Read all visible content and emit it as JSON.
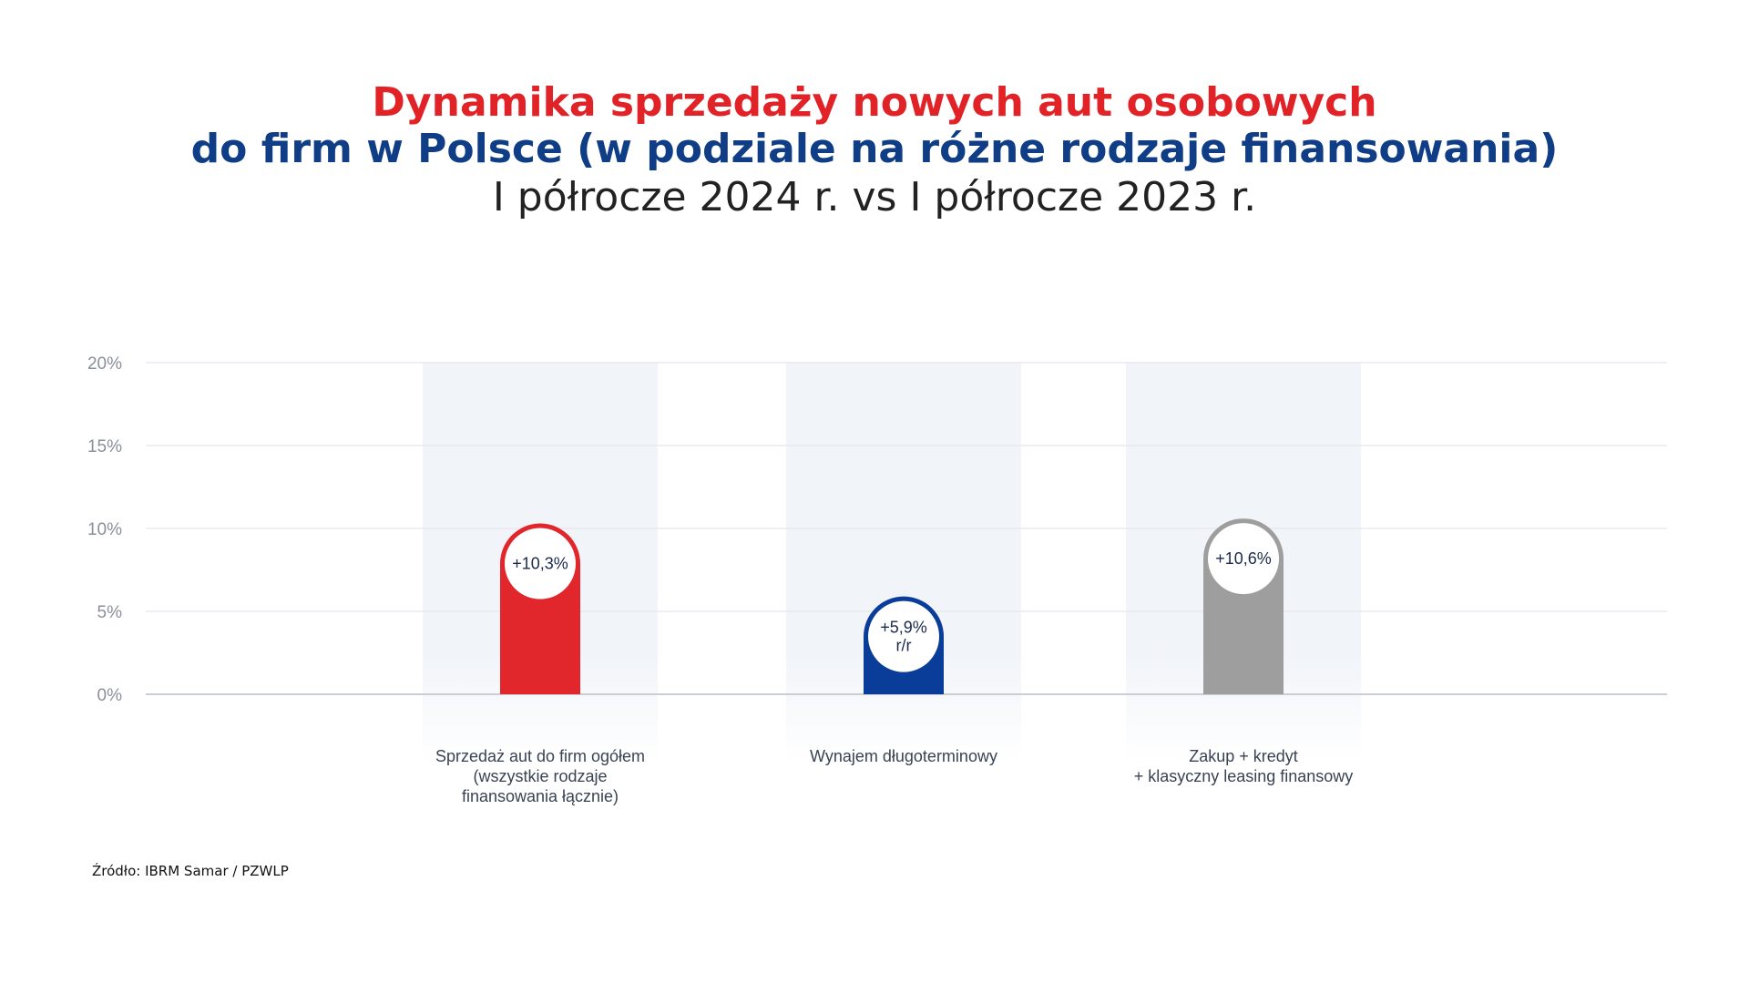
{
  "title": {
    "line1": "Dynamika sprzedaży nowych aut osobowych",
    "line2": "do firm w Polsce (w podziale na różne rodzaje finansowania)",
    "line3": "I półrocze 2024 r. vs I półrocze 2023 r."
  },
  "source": "Źródło:  IBRM Samar / PZWLP",
  "chart_data": {
    "type": "bar",
    "categories": [
      "Sprzedaż aut do firm ogółem\n(wszystkie rodzaje\nfinansowania łącznie)",
      "Wynajem długoterminowy",
      "Zakup + kredyt\n+ klasyczny leasing finansowy"
    ],
    "values": [
      10.3,
      5.9,
      10.6
    ],
    "data_labels": [
      "+10,3%",
      "+5,9%\nr/r",
      "+10,6%"
    ],
    "colors": [
      "#e1262c",
      "#0a3d99",
      "#9e9e9e"
    ],
    "ylim": [
      0,
      20
    ],
    "yticks": [
      0,
      5,
      10,
      15,
      20
    ],
    "ytick_labels": [
      "0%",
      "5%",
      "10%",
      "15%",
      "20%"
    ],
    "grid": true,
    "background_band_color": "#f1f4f9"
  }
}
